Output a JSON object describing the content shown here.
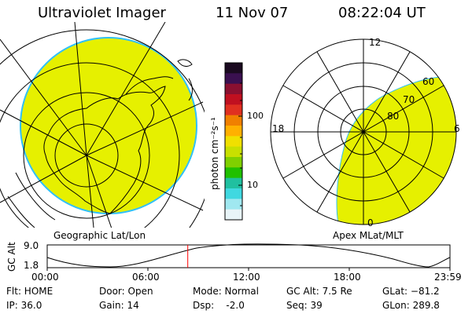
{
  "header": {
    "title": "Ultraviolet Imager",
    "date": "11 Nov 07",
    "time": "08:22:04 UT"
  },
  "colorbar": {
    "label": "photon cm⁻²s⁻¹",
    "ticks": [
      "100",
      "10"
    ],
    "colors": [
      "#1a0a20",
      "#3a1050",
      "#8a1030",
      "#c01020",
      "#e03020",
      "#f08000",
      "#ffb000",
      "#f0e000",
      "#c8e000",
      "#80d000",
      "#20c000",
      "#20c0a0",
      "#40d8e0",
      "#a0e8f0",
      "#e8f4f8"
    ]
  },
  "left_panel": {
    "label": "Geographic Lat/Lon",
    "fill_color": "#e6f000",
    "edge_color": "#30c0ff"
  },
  "right_panel": {
    "label": "Apex MLat/MLT",
    "labels": {
      "top": "12",
      "left": "18",
      "right": "6",
      "bottom": "0",
      "r60": "60",
      "r70": "70",
      "r80": "80"
    },
    "fill_color": "#e6f000"
  },
  "timeline": {
    "ylabel": "GC Alt",
    "ymax": "9.0",
    "ymin": "1.8",
    "xticks": [
      "00:00",
      "06:00",
      "12:00",
      "18:00",
      "23:59"
    ],
    "marker_color": "#ff0000",
    "marker_fraction": 0.349
  },
  "info": {
    "flt": "Flt: HOME",
    "ip": "IP: 36.0",
    "door": "Door: Open",
    "gain": "Gain: 14",
    "mode": "Mode: Normal",
    "dsp": "Dsp:    -2.0",
    "gcalt": "GC Alt: 7.5 Re",
    "seq": "Seq: 39",
    "glat": "GLat: −81.2",
    "glon": "GLon: 289.8"
  }
}
